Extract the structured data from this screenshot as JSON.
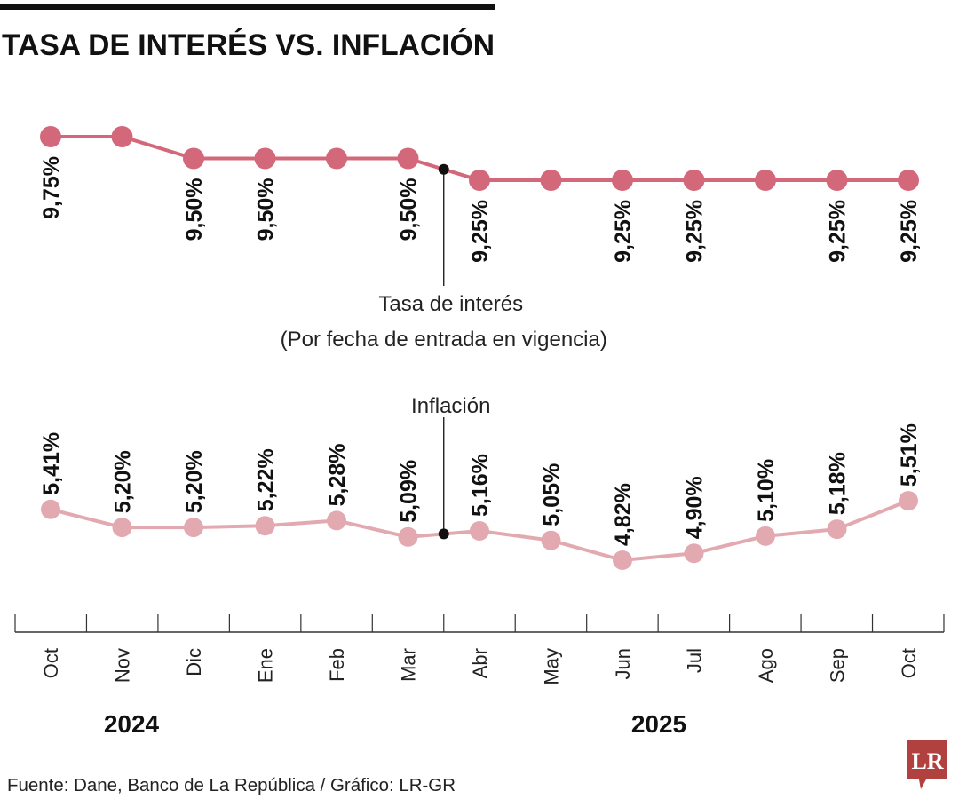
{
  "title": "TASA DE INTERÉS VS. INFLACIÓN",
  "source": "Fuente: Dane, Banco de La República / Gráfico: LR-GR",
  "logo_text": "LR",
  "colors": {
    "rate": "#d4687b",
    "inflation": "#e3a9b1",
    "logo": "#b0413e"
  },
  "chart_data": [
    {
      "type": "line",
      "categories": [
        "Oct",
        "Nov",
        "Dic",
        "Ene",
        "Feb",
        "Mar",
        "Abr",
        "May",
        "Jun",
        "Jul",
        "Ago",
        "Sep",
        "Oct"
      ],
      "years": [
        {
          "label": "2024",
          "from": 0,
          "to": 2
        },
        {
          "label": "2025",
          "from": 3,
          "to": 12
        }
      ],
      "series": [
        {
          "name": "Tasa de interés",
          "subtitle": "(Por fecha de entrada en vigencia)",
          "values": [
            9.75,
            9.75,
            9.5,
            9.5,
            9.5,
            9.5,
            9.25,
            9.25,
            9.25,
            9.25,
            9.25,
            9.25,
            9.25
          ],
          "labels": [
            "9,75%",
            null,
            "9,50%",
            "9,50%",
            null,
            "9,50%",
            "9,25%",
            null,
            "9,25%",
            "9,25%",
            null,
            "9,25%",
            "9,25%"
          ]
        },
        {
          "name": "Inflación",
          "values": [
            5.41,
            5.2,
            5.2,
            5.22,
            5.28,
            5.09,
            5.16,
            5.05,
            4.82,
            4.9,
            5.1,
            5.18,
            5.51
          ],
          "labels": [
            "5,41%",
            "5,20%",
            "5,20%",
            "5,22%",
            "5,28%",
            "5,09%",
            "5,16%",
            "5,05%",
            "4,82%",
            "4,90%",
            "5,10%",
            "5,18%",
            "5,51%"
          ]
        }
      ]
    }
  ]
}
